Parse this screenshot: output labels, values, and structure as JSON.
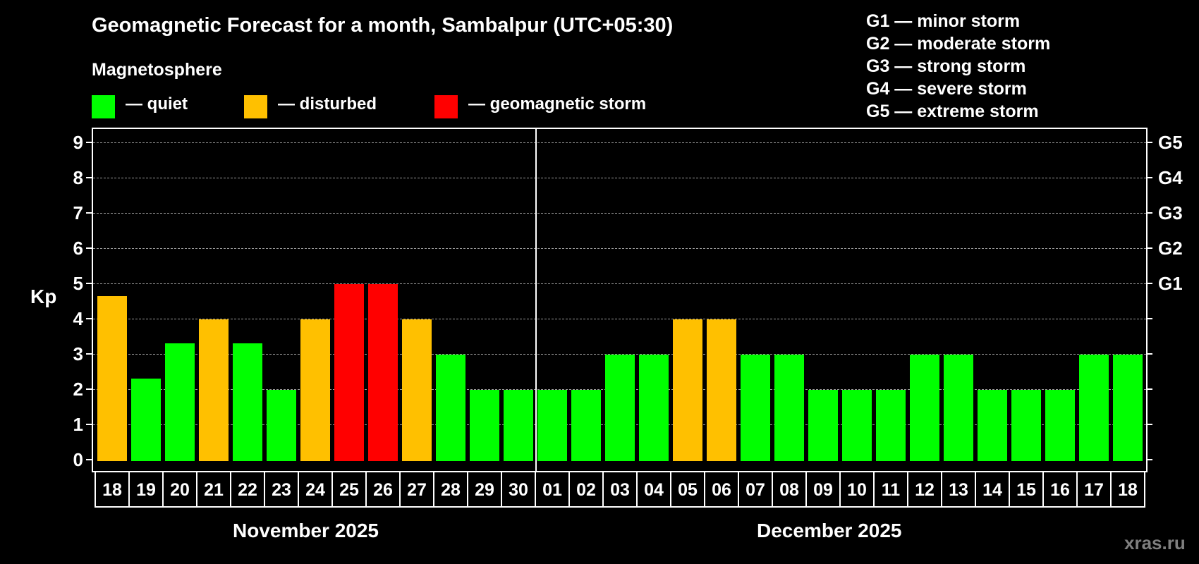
{
  "header": {
    "title": "Geomagnetic Forecast for a month, Sambalpur (UTC+05:30)",
    "subtitle": "Magnetosphere"
  },
  "legend": [
    {
      "label": "— quiet",
      "color": "#00ff00"
    },
    {
      "label": "— disturbed",
      "color": "#ffc000"
    },
    {
      "label": "— geomagnetic storm",
      "color": "#ff0000"
    }
  ],
  "gscale": [
    "G1 — minor storm",
    "G2 — moderate storm",
    "G3 — strong storm",
    "G4 — severe storm",
    "G5 — extreme storm"
  ],
  "axis": {
    "ylabel": "Kp",
    "yticks": [
      "0",
      "1",
      "2",
      "3",
      "4",
      "5",
      "6",
      "7",
      "8",
      "9"
    ],
    "right_labels": [
      {
        "kp": 5,
        "label": "G1"
      },
      {
        "kp": 6,
        "label": "G2"
      },
      {
        "kp": 7,
        "label": "G3"
      },
      {
        "kp": 8,
        "label": "G4"
      },
      {
        "kp": 9,
        "label": "G5"
      }
    ]
  },
  "months": [
    {
      "label": "November 2025"
    },
    {
      "label": "December 2025"
    }
  ],
  "watermark": "xras.ru",
  "colors": {
    "quiet": "#00ff00",
    "disturbed": "#ffc000",
    "storm": "#ff0000",
    "background": "#000000",
    "grid": "#9a9a9a",
    "watermark": "#7f7f7f"
  },
  "chart_data": {
    "type": "bar",
    "title": "Geomagnetic Forecast for a month, Sambalpur (UTC+05:30)",
    "xlabel": "",
    "ylabel": "Kp",
    "ylim": [
      0,
      9
    ],
    "grid": true,
    "legend_position": "top-left",
    "categories": [
      "18",
      "19",
      "20",
      "21",
      "22",
      "23",
      "24",
      "25",
      "26",
      "27",
      "28",
      "29",
      "30",
      "01",
      "02",
      "03",
      "04",
      "05",
      "06",
      "07",
      "08",
      "09",
      "10",
      "11",
      "12",
      "13",
      "14",
      "15",
      "16",
      "17",
      "18"
    ],
    "month_groups": [
      {
        "label": "November 2025",
        "from": "18",
        "to": "30"
      },
      {
        "label": "December 2025",
        "from": "01",
        "to": "18"
      }
    ],
    "values": [
      4.67,
      2.33,
      3.33,
      4,
      3.33,
      2,
      4,
      5,
      5,
      4,
      3,
      2,
      2,
      2,
      2,
      3,
      3,
      4,
      4,
      3,
      3,
      2,
      2,
      2,
      3,
      3,
      2,
      2,
      2,
      3,
      3
    ],
    "status": [
      "disturbed",
      "quiet",
      "quiet",
      "disturbed",
      "quiet",
      "quiet",
      "disturbed",
      "storm",
      "storm",
      "disturbed",
      "quiet",
      "quiet",
      "quiet",
      "quiet",
      "quiet",
      "quiet",
      "quiet",
      "disturbed",
      "disturbed",
      "quiet",
      "quiet",
      "quiet",
      "quiet",
      "quiet",
      "quiet",
      "quiet",
      "quiet",
      "quiet",
      "quiet",
      "quiet",
      "quiet"
    ],
    "right_axis": {
      "5": "G1",
      "6": "G2",
      "7": "G3",
      "8": "G4",
      "9": "G5"
    }
  }
}
